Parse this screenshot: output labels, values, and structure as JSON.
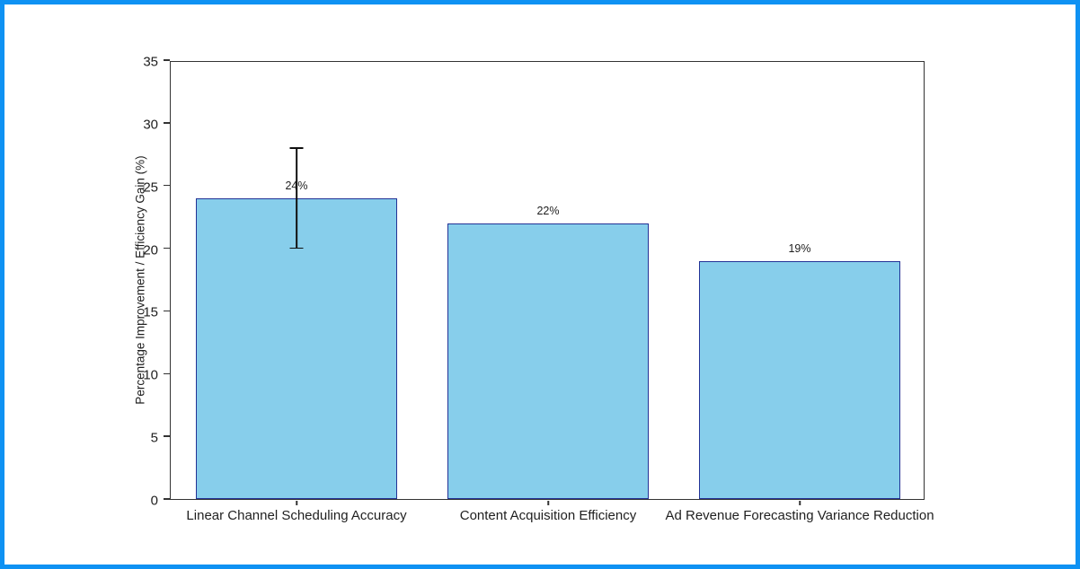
{
  "frame": {
    "border_color": "#0f92f3",
    "background_color": "#ffffff"
  },
  "chart_data": {
    "type": "bar",
    "title": "",
    "xlabel": "",
    "ylabel": "Percentage Improvement / Efficiency Gain (%)",
    "categories": [
      "Linear Channel Scheduling Accuracy",
      "Content Acquisition Efficiency",
      "Ad Revenue Forecasting Variance Reduction"
    ],
    "values": [
      24,
      22,
      19
    ],
    "value_labels": [
      "24%",
      "22%",
      "19%"
    ],
    "errors": [
      4,
      null,
      null
    ],
    "ylim": [
      0,
      35
    ],
    "yticks": [
      0,
      5,
      10,
      15,
      20,
      25,
      30,
      35
    ],
    "grid": false,
    "legend": null,
    "bar_fill_color": "#87CEEB",
    "bar_edge_color": "#233296",
    "error_bar_color": "#111111",
    "axis_color": "#333333",
    "text_color": "#1f1f1f"
  }
}
